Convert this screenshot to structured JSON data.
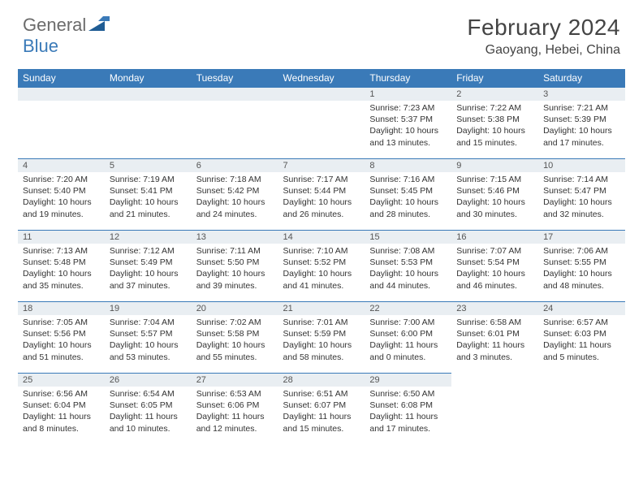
{
  "logo": {
    "textA": "General",
    "textB": "Blue"
  },
  "title": "February 2024",
  "location": "Gaoyang, Hebei, China",
  "colors": {
    "header_bg": "#3a7ab8",
    "header_text": "#ffffff",
    "cell_head_bg": "#e9eef2",
    "cell_divider": "#3a7ab8",
    "page_bg": "#ffffff",
    "body_text": "#333333"
  },
  "day_headers": [
    "Sunday",
    "Monday",
    "Tuesday",
    "Wednesday",
    "Thursday",
    "Friday",
    "Saturday"
  ],
  "weeks": [
    [
      null,
      null,
      null,
      null,
      {
        "n": "1",
        "sr": "7:23 AM",
        "ss": "5:37 PM",
        "dl": "10 hours and 13 minutes."
      },
      {
        "n": "2",
        "sr": "7:22 AM",
        "ss": "5:38 PM",
        "dl": "10 hours and 15 minutes."
      },
      {
        "n": "3",
        "sr": "7:21 AM",
        "ss": "5:39 PM",
        "dl": "10 hours and 17 minutes."
      }
    ],
    [
      {
        "n": "4",
        "sr": "7:20 AM",
        "ss": "5:40 PM",
        "dl": "10 hours and 19 minutes."
      },
      {
        "n": "5",
        "sr": "7:19 AM",
        "ss": "5:41 PM",
        "dl": "10 hours and 21 minutes."
      },
      {
        "n": "6",
        "sr": "7:18 AM",
        "ss": "5:42 PM",
        "dl": "10 hours and 24 minutes."
      },
      {
        "n": "7",
        "sr": "7:17 AM",
        "ss": "5:44 PM",
        "dl": "10 hours and 26 minutes."
      },
      {
        "n": "8",
        "sr": "7:16 AM",
        "ss": "5:45 PM",
        "dl": "10 hours and 28 minutes."
      },
      {
        "n": "9",
        "sr": "7:15 AM",
        "ss": "5:46 PM",
        "dl": "10 hours and 30 minutes."
      },
      {
        "n": "10",
        "sr": "7:14 AM",
        "ss": "5:47 PM",
        "dl": "10 hours and 32 minutes."
      }
    ],
    [
      {
        "n": "11",
        "sr": "7:13 AM",
        "ss": "5:48 PM",
        "dl": "10 hours and 35 minutes."
      },
      {
        "n": "12",
        "sr": "7:12 AM",
        "ss": "5:49 PM",
        "dl": "10 hours and 37 minutes."
      },
      {
        "n": "13",
        "sr": "7:11 AM",
        "ss": "5:50 PM",
        "dl": "10 hours and 39 minutes."
      },
      {
        "n": "14",
        "sr": "7:10 AM",
        "ss": "5:52 PM",
        "dl": "10 hours and 41 minutes."
      },
      {
        "n": "15",
        "sr": "7:08 AM",
        "ss": "5:53 PM",
        "dl": "10 hours and 44 minutes."
      },
      {
        "n": "16",
        "sr": "7:07 AM",
        "ss": "5:54 PM",
        "dl": "10 hours and 46 minutes."
      },
      {
        "n": "17",
        "sr": "7:06 AM",
        "ss": "5:55 PM",
        "dl": "10 hours and 48 minutes."
      }
    ],
    [
      {
        "n": "18",
        "sr": "7:05 AM",
        "ss": "5:56 PM",
        "dl": "10 hours and 51 minutes."
      },
      {
        "n": "19",
        "sr": "7:04 AM",
        "ss": "5:57 PM",
        "dl": "10 hours and 53 minutes."
      },
      {
        "n": "20",
        "sr": "7:02 AM",
        "ss": "5:58 PM",
        "dl": "10 hours and 55 minutes."
      },
      {
        "n": "21",
        "sr": "7:01 AM",
        "ss": "5:59 PM",
        "dl": "10 hours and 58 minutes."
      },
      {
        "n": "22",
        "sr": "7:00 AM",
        "ss": "6:00 PM",
        "dl": "11 hours and 0 minutes."
      },
      {
        "n": "23",
        "sr": "6:58 AM",
        "ss": "6:01 PM",
        "dl": "11 hours and 3 minutes."
      },
      {
        "n": "24",
        "sr": "6:57 AM",
        "ss": "6:03 PM",
        "dl": "11 hours and 5 minutes."
      }
    ],
    [
      {
        "n": "25",
        "sr": "6:56 AM",
        "ss": "6:04 PM",
        "dl": "11 hours and 8 minutes."
      },
      {
        "n": "26",
        "sr": "6:54 AM",
        "ss": "6:05 PM",
        "dl": "11 hours and 10 minutes."
      },
      {
        "n": "27",
        "sr": "6:53 AM",
        "ss": "6:06 PM",
        "dl": "11 hours and 12 minutes."
      },
      {
        "n": "28",
        "sr": "6:51 AM",
        "ss": "6:07 PM",
        "dl": "11 hours and 15 minutes."
      },
      {
        "n": "29",
        "sr": "6:50 AM",
        "ss": "6:08 PM",
        "dl": "11 hours and 17 minutes."
      },
      null,
      null
    ]
  ],
  "labels": {
    "sunrise": "Sunrise:",
    "sunset": "Sunset:",
    "daylight": "Daylight:"
  },
  "typography": {
    "title_fontsize": 28,
    "location_fontsize": 16,
    "header_fontsize": 12,
    "cell_fontsize": 10.5
  }
}
